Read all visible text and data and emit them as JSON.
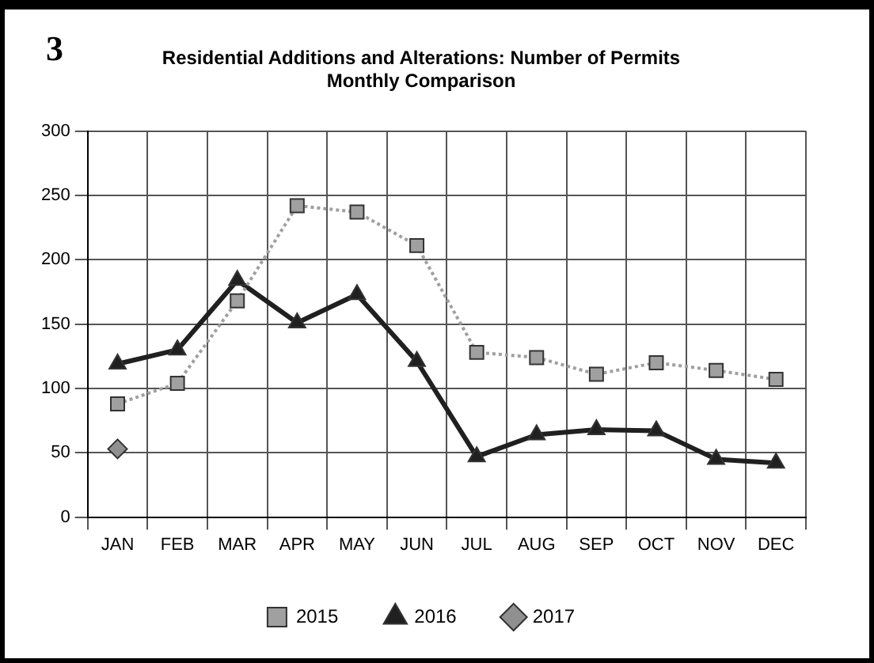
{
  "chart_data": {
    "type": "line",
    "title": [
      "Residential Additions and Alterations: Number of Permits",
      "Monthly Comparison"
    ],
    "annotations": [
      "3"
    ],
    "categories": [
      "JAN",
      "FEB",
      "MAR",
      "APR",
      "MAY",
      "JUN",
      "JUL",
      "AUG",
      "SEP",
      "OCT",
      "NOV",
      "DEC"
    ],
    "series": [
      {
        "name": "2015",
        "color": "#a0a0a0",
        "marker": "square",
        "line_style": "dotted",
        "values": [
          88,
          104,
          168,
          242,
          237,
          211,
          128,
          124,
          111,
          120,
          114,
          107
        ]
      },
      {
        "name": "2016",
        "color": "#202020",
        "marker": "triangle",
        "line_style": "solid",
        "values": [
          119,
          130,
          184,
          151,
          173,
          121,
          47,
          64,
          68,
          67,
          45,
          42
        ]
      },
      {
        "name": "2017",
        "color": "#909090",
        "marker": "diamond",
        "line_style": "solid",
        "values": [
          53,
          null,
          null,
          null,
          null,
          null,
          null,
          null,
          null,
          null,
          null,
          null
        ]
      }
    ],
    "ylim": [
      0,
      300
    ],
    "yticks": [
      0,
      50,
      100,
      150,
      200,
      250,
      300
    ],
    "grid": true,
    "legend": "bottom"
  }
}
